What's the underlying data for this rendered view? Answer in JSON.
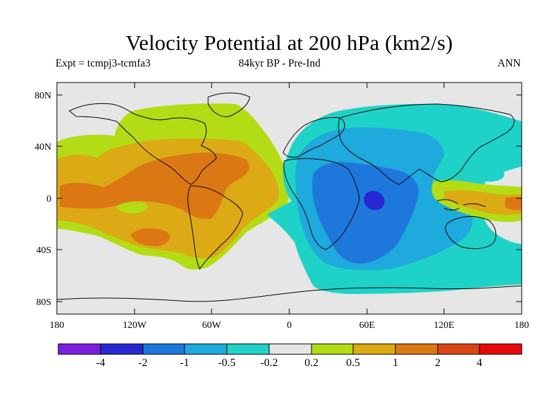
{
  "title": "Velocity Potential at 200 hPa (km2/s)",
  "subtitle_left": "Expt = tcmpj3-tcmfa3",
  "subtitle_center": "84kyr BP - Pre-Ind",
  "subtitle_right": "ANN",
  "axes": {
    "lat_ticks": [
      "80N",
      "40N",
      "0",
      "40S",
      "80S"
    ],
    "lon_ticks": [
      "180",
      "120W",
      "60W",
      "0",
      "60E",
      "120E",
      "180"
    ]
  },
  "colorbar": {
    "labels": [
      "-4",
      "-2",
      "-1",
      "-0.5",
      "-0.2",
      "0.2",
      "0.5",
      "1",
      "2",
      "4"
    ],
    "colors": [
      "#7a1ee0",
      "#2828d2",
      "#1e78dc",
      "#1eaadc",
      "#1ed2c8",
      "#e6e6e6",
      "#b4dc14",
      "#dcaa14",
      "#dc7814",
      "#dc4614",
      "#e60a0a"
    ]
  },
  "map_palette": {
    "land_line": "#000000",
    "neutral": "#e6e6e6",
    "v_neg4": "#2828d2",
    "v_neg2": "#1e78dc",
    "v_neg1": "#1eaadc",
    "v_neg05": "#1ed2c8",
    "v_pos02": "#b4dc14",
    "v_pos05": "#dcaa14",
    "v_pos1": "#dc7814",
    "v_pos2": "#dc4614"
  }
}
